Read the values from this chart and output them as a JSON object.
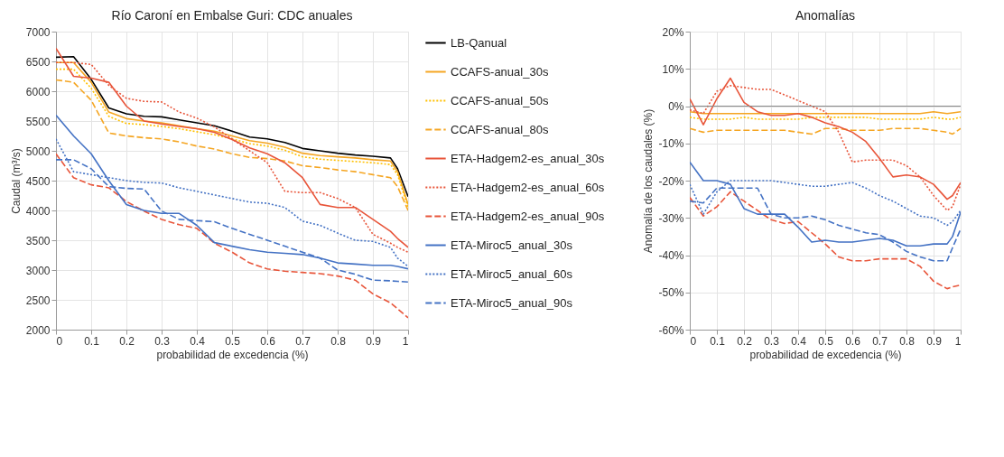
{
  "chart_data": [
    {
      "type": "line",
      "title": "Río Caroní en Embalse Guri: CDC anuales",
      "xlabel": "probabilidad de excedencia (%)",
      "ylabel": "Caudal (m³/s)",
      "x": [
        0,
        0.05,
        0.1,
        0.15,
        0.2,
        0.25,
        0.3,
        0.35,
        0.4,
        0.45,
        0.5,
        0.55,
        0.6,
        0.65,
        0.7,
        0.75,
        0.8,
        0.85,
        0.9,
        0.95,
        0.97,
        1
      ],
      "xlim": [
        0,
        1
      ],
      "xticks": [
        0,
        0.1,
        0.2,
        0.3,
        0.4,
        0.5,
        0.6,
        0.7,
        0.8,
        0.9,
        1
      ],
      "ylim": [
        2000,
        7000
      ],
      "yticks": [
        2000,
        2500,
        3000,
        3500,
        4000,
        4500,
        5000,
        5500,
        6000,
        6500,
        7000
      ],
      "grid": true,
      "legend": "right",
      "series": [
        {
          "name": "LB-Qanual",
          "color": "#000000",
          "line_style": "solid",
          "values": [
            6570,
            6580,
            6200,
            5720,
            5620,
            5580,
            5570,
            5520,
            5470,
            5420,
            5330,
            5230,
            5200,
            5140,
            5040,
            5000,
            4960,
            4930,
            4910,
            4880,
            4700,
            4230
          ]
        },
        {
          "name": "CCAFS-anual_30s",
          "color": "#f5a623",
          "line_style": "solid",
          "values": [
            6480,
            6480,
            6150,
            5650,
            5540,
            5500,
            5470,
            5420,
            5370,
            5330,
            5250,
            5170,
            5130,
            5060,
            4960,
            4920,
            4900,
            4880,
            4850,
            4830,
            4650,
            4100
          ]
        },
        {
          "name": "CCAFS-anual_50s",
          "color": "#ffc000",
          "line_style": "dotted",
          "values": [
            6370,
            6370,
            6050,
            5580,
            5460,
            5440,
            5410,
            5370,
            5320,
            5270,
            5200,
            5120,
            5080,
            5010,
            4900,
            4860,
            4840,
            4820,
            4800,
            4770,
            4600,
            4050
          ]
        },
        {
          "name": "CCAFS-anual_80s",
          "color": "#f5a623",
          "line_style": "dashed",
          "values": [
            6190,
            6150,
            5850,
            5300,
            5250,
            5220,
            5200,
            5150,
            5080,
            5030,
            4950,
            4890,
            4870,
            4830,
            4750,
            4720,
            4680,
            4650,
            4600,
            4550,
            4400,
            4000
          ]
        },
        {
          "name": "ETA-Hadgem2-es_anual_30s",
          "color": "#e8553a",
          "line_style": "solid",
          "values": [
            6720,
            6250,
            6220,
            6150,
            5750,
            5500,
            5450,
            5410,
            5370,
            5310,
            5190,
            5050,
            4950,
            4800,
            4550,
            4100,
            4050,
            4050,
            3850,
            3650,
            3530,
            3380
          ]
        },
        {
          "name": "ETA-Hadgem2-es_anual_60s",
          "color": "#e8553a",
          "line_style": "dotted",
          "values": [
            6480,
            6480,
            6450,
            6100,
            5880,
            5830,
            5820,
            5650,
            5550,
            5400,
            5200,
            5000,
            4800,
            4320,
            4300,
            4300,
            4200,
            4050,
            3600,
            3450,
            3380,
            3300
          ]
        },
        {
          "name": "ETA-Hadgem2-es_anual_90s",
          "color": "#e8553a",
          "line_style": "dashed",
          "values": [
            4950,
            4550,
            4430,
            4380,
            4150,
            3990,
            3850,
            3760,
            3700,
            3450,
            3300,
            3120,
            3020,
            2980,
            2960,
            2940,
            2900,
            2830,
            2600,
            2450,
            2350,
            2200
          ]
        },
        {
          "name": "ETA-Miroc5_anual_30s",
          "color": "#4472c4",
          "line_style": "solid",
          "values": [
            5600,
            5250,
            4950,
            4500,
            4100,
            4000,
            3950,
            3950,
            3750,
            3460,
            3400,
            3340,
            3300,
            3280,
            3260,
            3200,
            3120,
            3100,
            3080,
            3080,
            3060,
            3020
          ]
        },
        {
          "name": "ETA-Miroc5_anual_60s",
          "color": "#4472c4",
          "line_style": "dotted",
          "values": [
            5200,
            4650,
            4600,
            4550,
            4500,
            4470,
            4460,
            4380,
            4320,
            4260,
            4200,
            4140,
            4120,
            4050,
            3820,
            3750,
            3620,
            3500,
            3480,
            3380,
            3200,
            3060
          ]
        },
        {
          "name": "ETA-Miroc5_anual_90s",
          "color": "#4472c4",
          "line_style": "dashed",
          "values": [
            4850,
            4850,
            4700,
            4400,
            4370,
            4360,
            3990,
            3850,
            3830,
            3810,
            3700,
            3600,
            3500,
            3400,
            3300,
            3200,
            3000,
            2930,
            2830,
            2820,
            2810,
            2800
          ]
        }
      ]
    },
    {
      "type": "line",
      "title": "Anomalías",
      "xlabel": "probabilidad de excedencia (%)",
      "ylabel": "Anomalía de los caudales (%)",
      "x": [
        0,
        0.05,
        0.1,
        0.15,
        0.2,
        0.25,
        0.3,
        0.35,
        0.4,
        0.45,
        0.5,
        0.55,
        0.6,
        0.65,
        0.7,
        0.75,
        0.8,
        0.85,
        0.9,
        0.95,
        0.97,
        1
      ],
      "xlim": [
        0,
        1
      ],
      "xticks": [
        0,
        0.1,
        0.2,
        0.3,
        0.4,
        0.5,
        0.6,
        0.7,
        0.8,
        0.9,
        1
      ],
      "ylim": [
        -60,
        20
      ],
      "yticks": [
        {
          "value": -60,
          "label": "-60%"
        },
        {
          "value": -50,
          "label": "-50%"
        },
        {
          "value": -40,
          "label": "-40%"
        },
        {
          "value": -30,
          "label": "-30%"
        },
        {
          "value": -20,
          "label": "-20%"
        },
        {
          "value": -10,
          "label": "-10%"
        },
        {
          "value": 0,
          "label": "0%"
        },
        {
          "value": 10,
          "label": "10%"
        },
        {
          "value": 20,
          "label": "20%"
        }
      ],
      "grid": true,
      "ref_lines": [
        {
          "axis": "y",
          "value": 0,
          "color": "#888888"
        }
      ],
      "series": [
        {
          "color": "#f5a623",
          "line_style": "solid",
          "values": [
            -1.5,
            -2,
            -2,
            -2,
            -2,
            -2,
            -2,
            -2,
            -2,
            -2,
            -2,
            -2,
            -2,
            -2,
            -2,
            -2,
            -2,
            -2,
            -1.5,
            -2,
            -1.8,
            -1.5
          ]
        },
        {
          "color": "#ffc000",
          "line_style": "dotted",
          "values": [
            -3,
            -3.5,
            -3.5,
            -3.5,
            -3,
            -3.5,
            -3.5,
            -3.5,
            -3.5,
            -3,
            -3,
            -3,
            -3,
            -3,
            -3.5,
            -3.5,
            -3.5,
            -3.5,
            -3,
            -3.5,
            -3.5,
            -3
          ]
        },
        {
          "color": "#f5a623",
          "line_style": "dashed",
          "values": [
            -6,
            -7,
            -6.5,
            -6.5,
            -6.5,
            -6.5,
            -6.5,
            -6.5,
            -7,
            -7.5,
            -6,
            -6,
            -6.5,
            -6.5,
            -6.5,
            -6,
            -6,
            -6,
            -6.5,
            -7,
            -7.5,
            -6
          ]
        },
        {
          "color": "#e8553a",
          "line_style": "solid",
          "values": [
            2,
            -5,
            2,
            7.5,
            1,
            -1.5,
            -2.5,
            -2.5,
            -2,
            -3,
            -4.5,
            -5.5,
            -7,
            -9.5,
            -14,
            -19,
            -18.5,
            -19,
            -21,
            -25,
            -24,
            -20.5
          ]
        },
        {
          "color": "#e8553a",
          "line_style": "dotted",
          "values": [
            -1,
            -2,
            4,
            5.5,
            5,
            4.5,
            4.5,
            3,
            1.5,
            0,
            -1.5,
            -7,
            -15,
            -14.5,
            -14.5,
            -14.5,
            -16,
            -19,
            -24,
            -28,
            -27,
            -21
          ]
        },
        {
          "color": "#e8553a",
          "line_style": "dashed",
          "values": [
            -24.5,
            -29.5,
            -27,
            -23,
            -25.5,
            -28,
            -30.5,
            -31.5,
            -31,
            -34,
            -37,
            -40.5,
            -41.5,
            -41.5,
            -41,
            -41,
            -41,
            -43,
            -47,
            -49,
            -48.5,
            -48
          ]
        },
        {
          "color": "#4472c4",
          "line_style": "solid",
          "values": [
            -15,
            -20,
            -20,
            -21,
            -27.5,
            -29,
            -29,
            -29,
            -32.5,
            -36.5,
            -36,
            -36.5,
            -36.5,
            -36,
            -35.5,
            -36,
            -37.5,
            -37.5,
            -37,
            -37,
            -35,
            -28.5
          ]
        },
        {
          "color": "#4472c4",
          "line_style": "dotted",
          "values": [
            -21,
            -29,
            -23,
            -20,
            -20,
            -20,
            -20,
            -20.5,
            -21,
            -21.5,
            -21.5,
            -21,
            -20.5,
            -22,
            -24,
            -25.5,
            -27.5,
            -29.5,
            -30,
            -32,
            -31,
            -28
          ]
        },
        {
          "color": "#4472c4",
          "line_style": "dashed",
          "values": [
            -25.5,
            -26,
            -22,
            -22,
            -22,
            -22,
            -29,
            -30,
            -30,
            -29.5,
            -30.5,
            -32,
            -33,
            -34,
            -34.5,
            -36.5,
            -39,
            -40.5,
            -41.5,
            -41.5,
            -38,
            -33
          ]
        }
      ]
    }
  ]
}
